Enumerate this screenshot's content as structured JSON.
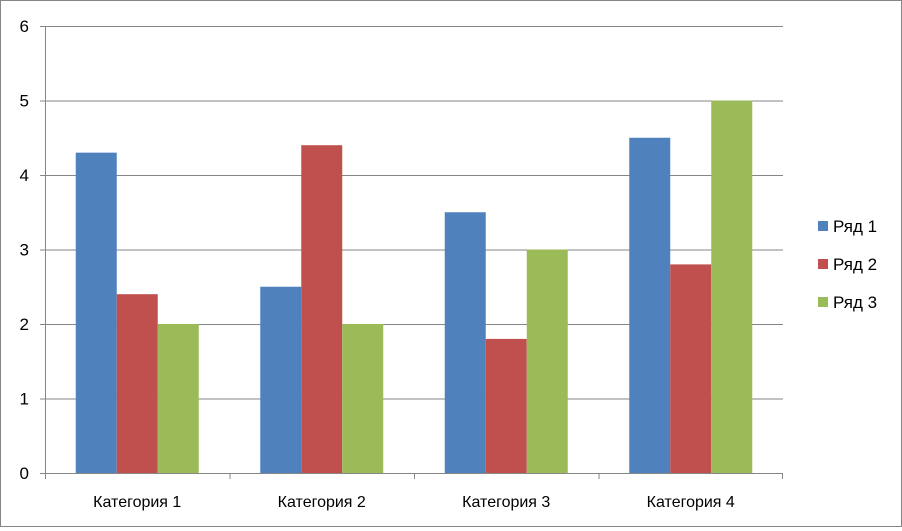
{
  "chart_data": {
    "type": "bar",
    "title": "",
    "xlabel": "",
    "ylabel": "",
    "categories": [
      "Категория 1",
      "Категория 2",
      "Категория 3",
      "Категория 4"
    ],
    "series": [
      {
        "name": "Ряд 1",
        "values": [
          4.3,
          2.5,
          3.5,
          4.5
        ],
        "color": "#4F81BD"
      },
      {
        "name": "Ряд 2",
        "values": [
          2.4,
          4.4,
          1.8,
          2.8
        ],
        "color": "#C0504D"
      },
      {
        "name": "Ряд 3",
        "values": [
          2,
          2,
          3,
          5
        ],
        "color": "#9BBB59"
      }
    ],
    "ylim": [
      0,
      6
    ],
    "yticks": [
      "0",
      "1",
      "2",
      "3",
      "4",
      "5",
      "6"
    ],
    "grid": true,
    "legend_position": "right"
  }
}
